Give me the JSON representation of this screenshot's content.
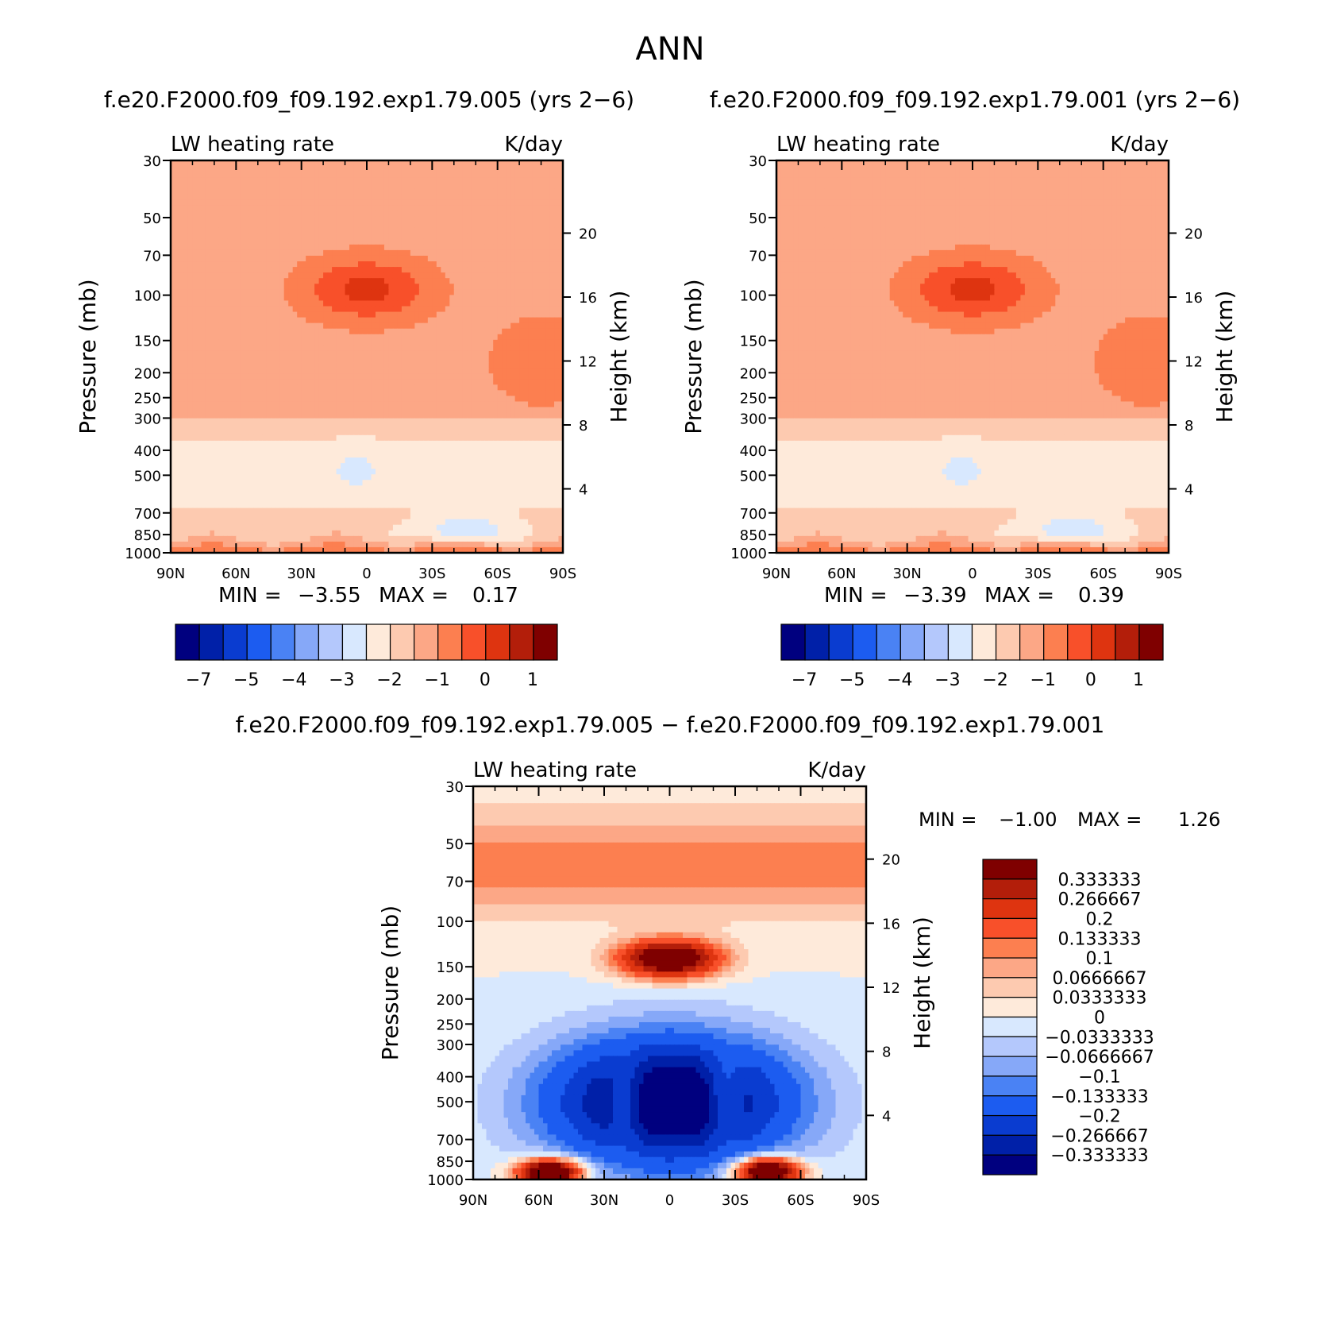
{
  "figure": {
    "title": "ANN",
    "diff_title": "f.e20.F2000.f09_f09.192.exp1.79.005 − f.e20.F2000.f09_f09.192.exp1.79.001"
  },
  "palettes": {
    "main": [
      "#00007f",
      "#0020a8",
      "#0a3cd0",
      "#1c5cf0",
      "#4a82f4",
      "#86a8f8",
      "#b4c8fc",
      "#d8e8fe",
      "#feeada",
      "#fdcab0",
      "#fca786",
      "#fc7f50",
      "#f8502a",
      "#de3410",
      "#b31e0a",
      "#7f0000"
    ],
    "diff": [
      "#00007f",
      "#0020a8",
      "#0a3cd0",
      "#1c5cf0",
      "#4a82f4",
      "#86a8f8",
      "#b4c8fc",
      "#d8e8fe",
      "#feeada",
      "#fdcab0",
      "#fca786",
      "#fc7f50",
      "#f8502a",
      "#de3410",
      "#b31e0a",
      "#7f0000"
    ]
  },
  "chart_data": [
    {
      "type": "heatmap",
      "name": "panel-left",
      "subtitle": "f.e20.F2000.f09_f09.192.exp1.79.005 (yrs 2−6)",
      "field_label": "LW heating rate",
      "units": "K/day",
      "xlabel": "",
      "ylabel": "Pressure (mb)",
      "y2label": "Height (km)",
      "x_ticks": [
        "90N",
        "60N",
        "30N",
        "0",
        "30S",
        "60S",
        "90S"
      ],
      "y_ticks": [
        "30",
        "50",
        "70",
        "100",
        "150",
        "200",
        "250",
        "300",
        "400",
        "500",
        "700",
        "850",
        "1000"
      ],
      "y_tick_values": [
        30,
        50,
        70,
        100,
        150,
        200,
        250,
        300,
        400,
        500,
        700,
        850,
        1000
      ],
      "y2_ticks": [
        "20",
        "16",
        "12",
        "8",
        "4"
      ],
      "ylim": [
        30,
        1000
      ],
      "x_range": [
        90,
        -90
      ],
      "min_label": "MIN =",
      "min_value": "−3.55",
      "max_label": "MAX =",
      "max_value": "0.17",
      "colorbar_labels": [
        "−7",
        "−5",
        "−4",
        "−3",
        "−2",
        "−1",
        "0",
        "1"
      ]
    },
    {
      "type": "heatmap",
      "name": "panel-right",
      "subtitle": "f.e20.F2000.f09_f09.192.exp1.79.001 (yrs 2−6)",
      "field_label": "LW heating rate",
      "units": "K/day",
      "xlabel": "",
      "ylabel": "Pressure (mb)",
      "y2label": "Height (km)",
      "x_ticks": [
        "90N",
        "60N",
        "30N",
        "0",
        "30S",
        "60S",
        "90S"
      ],
      "y_ticks": [
        "30",
        "50",
        "70",
        "100",
        "150",
        "200",
        "250",
        "300",
        "400",
        "500",
        "700",
        "850",
        "1000"
      ],
      "y_tick_values": [
        30,
        50,
        70,
        100,
        150,
        200,
        250,
        300,
        400,
        500,
        700,
        850,
        1000
      ],
      "y2_ticks": [
        "20",
        "16",
        "12",
        "8",
        "4"
      ],
      "ylim": [
        30,
        1000
      ],
      "x_range": [
        90,
        -90
      ],
      "min_label": "MIN =",
      "min_value": "−3.39",
      "max_label": "MAX =",
      "max_value": "0.39",
      "colorbar_labels": [
        "−7",
        "−5",
        "−4",
        "−3",
        "−2",
        "−1",
        "0",
        "1"
      ]
    },
    {
      "type": "heatmap",
      "name": "panel-diff",
      "field_label": "LW heating rate",
      "units": "K/day",
      "xlabel": "",
      "ylabel": "Pressure (mb)",
      "y2label": "Height (km)",
      "x_ticks": [
        "90N",
        "60N",
        "30N",
        "0",
        "30S",
        "60S",
        "90S"
      ],
      "y_ticks": [
        "30",
        "50",
        "70",
        "100",
        "150",
        "200",
        "250",
        "300",
        "400",
        "500",
        "700",
        "850",
        "1000"
      ],
      "y_tick_values": [
        30,
        50,
        70,
        100,
        150,
        200,
        250,
        300,
        400,
        500,
        700,
        850,
        1000
      ],
      "y2_ticks": [
        "20",
        "16",
        "12",
        "8",
        "4"
      ],
      "ylim": [
        30,
        1000
      ],
      "x_range": [
        90,
        -90
      ],
      "min_label": "MIN =",
      "min_value": "−1.00",
      "max_label": "MAX =",
      "max_value": "1.26",
      "colorbar_labels": [
        "0.333333",
        "0.266667",
        "0.2",
        "0.133333",
        "0.1",
        "0.0666667",
        "0.0333333",
        "0",
        "−0.0333333",
        "−0.0666667",
        "−0.1",
        "−0.133333",
        "−0.2",
        "−0.266667",
        "−0.333333"
      ]
    }
  ]
}
